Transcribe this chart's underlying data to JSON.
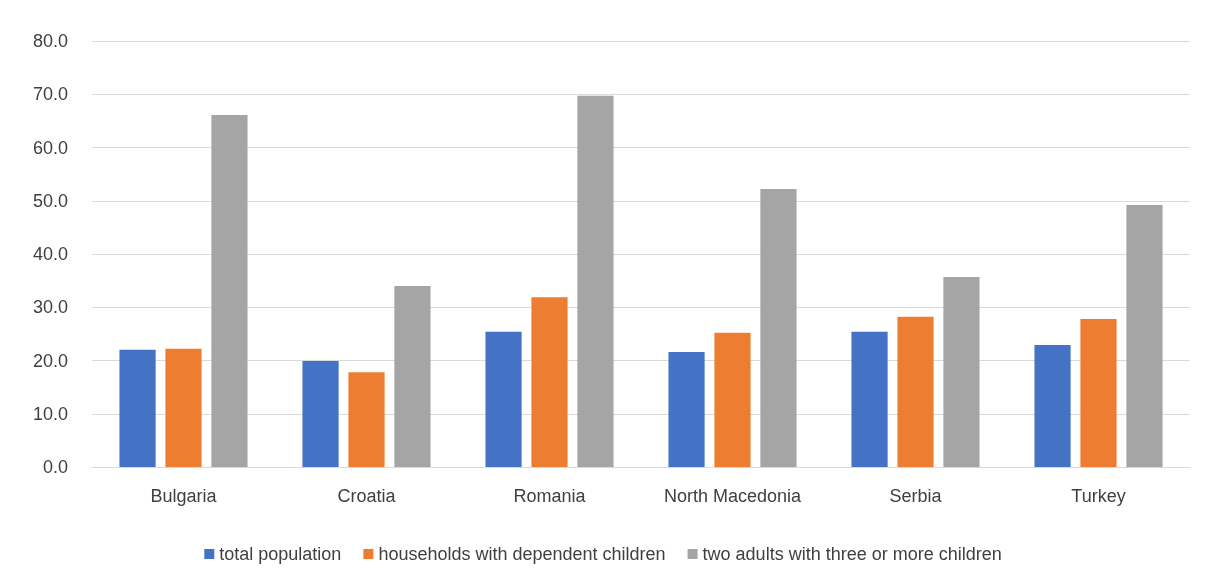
{
  "chart_data": {
    "type": "bar",
    "categories": [
      "Bulgaria",
      "Croatia",
      "Romania",
      "North Macedonia",
      "Serbia",
      "Turkey"
    ],
    "series": [
      {
        "name": "total population",
        "color": "#4472c4",
        "values": [
          22.0,
          19.9,
          25.4,
          21.6,
          25.4,
          22.9
        ]
      },
      {
        "name": "households with dependent children",
        "color": "#ed7d31",
        "values": [
          22.2,
          17.8,
          31.9,
          25.2,
          28.2,
          27.8
        ]
      },
      {
        "name": "two adults with three or more children",
        "color": "#a5a5a5",
        "values": [
          66.1,
          34.0,
          69.7,
          52.2,
          35.7,
          49.2
        ]
      }
    ],
    "ylim": [
      0,
      80
    ],
    "yticks": [
      {
        "value": 0,
        "label": "0.0"
      },
      {
        "value": 10,
        "label": "10.0"
      },
      {
        "value": 20,
        "label": "20.0"
      },
      {
        "value": 30,
        "label": "30.0"
      },
      {
        "value": 40,
        "label": "40.0"
      },
      {
        "value": 50,
        "label": "50.0"
      },
      {
        "value": 60,
        "label": "60.0"
      },
      {
        "value": 70,
        "label": "70.0"
      },
      {
        "value": 80,
        "label": "80.0"
      }
    ],
    "grid": "y",
    "legend": "bottom"
  }
}
